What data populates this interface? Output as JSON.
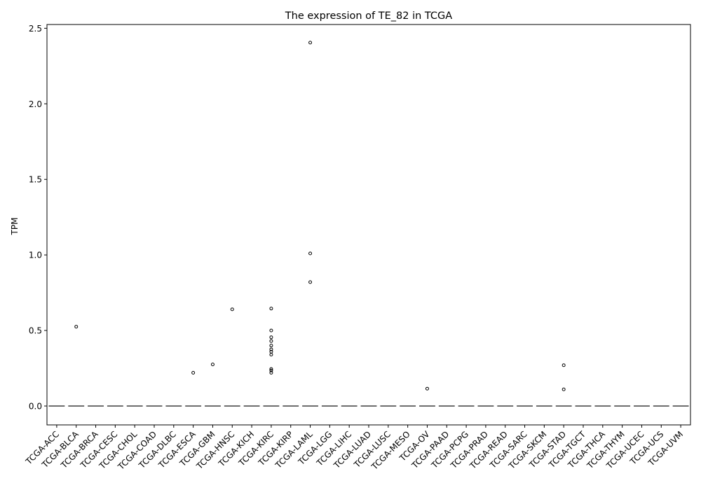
{
  "chart_data": {
    "type": "box",
    "title": "The expression of TE_82 in TCGA",
    "xlabel": "",
    "ylabel": "TPM",
    "ylim": [
      -0.125,
      2.525
    ],
    "yticks": [
      0.0,
      0.5,
      1.0,
      1.5,
      2.0,
      2.5
    ],
    "ytick_labels": [
      "0.0",
      "0.5",
      "1.0",
      "1.5",
      "2.0",
      "2.5"
    ],
    "grid": false,
    "categories": [
      "TCGA-ACC",
      "TCGA-BLCA",
      "TCGA-BRCA",
      "TCGA-CESC",
      "TCGA-CHOL",
      "TCGA-COAD",
      "TCGA-DLBC",
      "TCGA-ESCA",
      "TCGA-GBM",
      "TCGA-HNSC",
      "TCGA-KICH",
      "TCGA-KIRC",
      "TCGA-KIRP",
      "TCGA-LAML",
      "TCGA-LGG",
      "TCGA-LIHC",
      "TCGA-LUAD",
      "TCGA-LUSC",
      "TCGA-MESO",
      "TCGA-OV",
      "TCGA-PAAD",
      "TCGA-PCPG",
      "TCGA-PRAD",
      "TCGA-READ",
      "TCGA-SARC",
      "TCGA-SKCM",
      "TCGA-STAD",
      "TCGA-TGCT",
      "TCGA-THCA",
      "TCGA-THYM",
      "TCGA-UCEC",
      "TCGA-UCS",
      "TCGA-UVM"
    ],
    "box_median": 0.0,
    "box_q1": 0.0,
    "box_q3": 0.0,
    "outliers": [
      {
        "category": "TCGA-BLCA",
        "values": [
          0.525
        ]
      },
      {
        "category": "TCGA-ESCA",
        "values": [
          0.22
        ]
      },
      {
        "category": "TCGA-GBM",
        "values": [
          0.275
        ]
      },
      {
        "category": "TCGA-HNSC",
        "values": [
          0.64
        ]
      },
      {
        "category": "TCGA-KIRC",
        "values": [
          0.645,
          0.5,
          0.455,
          0.43,
          0.4,
          0.375,
          0.36,
          0.34,
          0.245,
          0.235,
          0.22
        ]
      },
      {
        "category": "TCGA-LAML",
        "values": [
          2.405,
          1.01,
          0.82
        ]
      },
      {
        "category": "TCGA-OV",
        "values": [
          0.115
        ]
      },
      {
        "category": "TCGA-STAD",
        "values": [
          0.27,
          0.11
        ]
      }
    ]
  }
}
